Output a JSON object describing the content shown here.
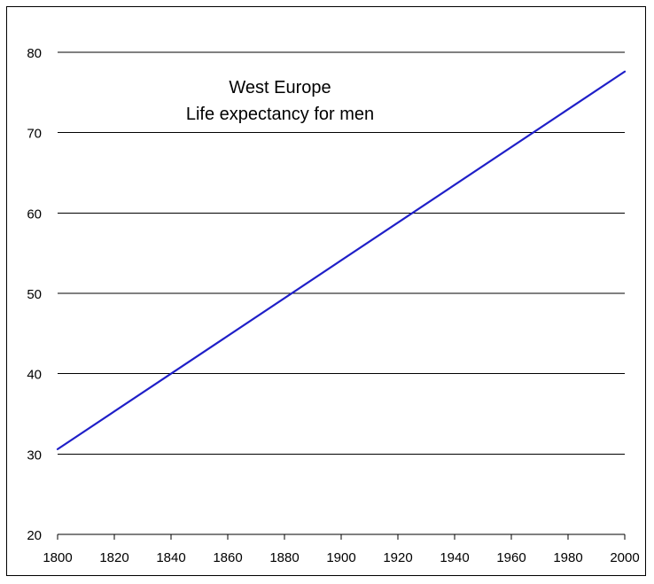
{
  "chart_data": {
    "type": "line",
    "title_lines": [
      "West Europe",
      "Life expectancy for men"
    ],
    "xlabel": "",
    "ylabel": "",
    "xlim": [
      1800,
      2000
    ],
    "ylim": [
      20,
      80
    ],
    "x_ticks": [
      1800,
      1820,
      1840,
      1860,
      1880,
      1900,
      1920,
      1940,
      1960,
      1980,
      2000
    ],
    "y_ticks": [
      20,
      30,
      40,
      50,
      60,
      70,
      80
    ],
    "grid": "horizontal",
    "legend": "none",
    "series": [
      {
        "color": "#1f1fc8",
        "x": [
          1800,
          2000
        ],
        "y": [
          30.6,
          77.6
        ]
      }
    ]
  },
  "colors": {
    "background": "#ffffff",
    "gridline": "#000000",
    "series_line": "#1f1fc8"
  }
}
